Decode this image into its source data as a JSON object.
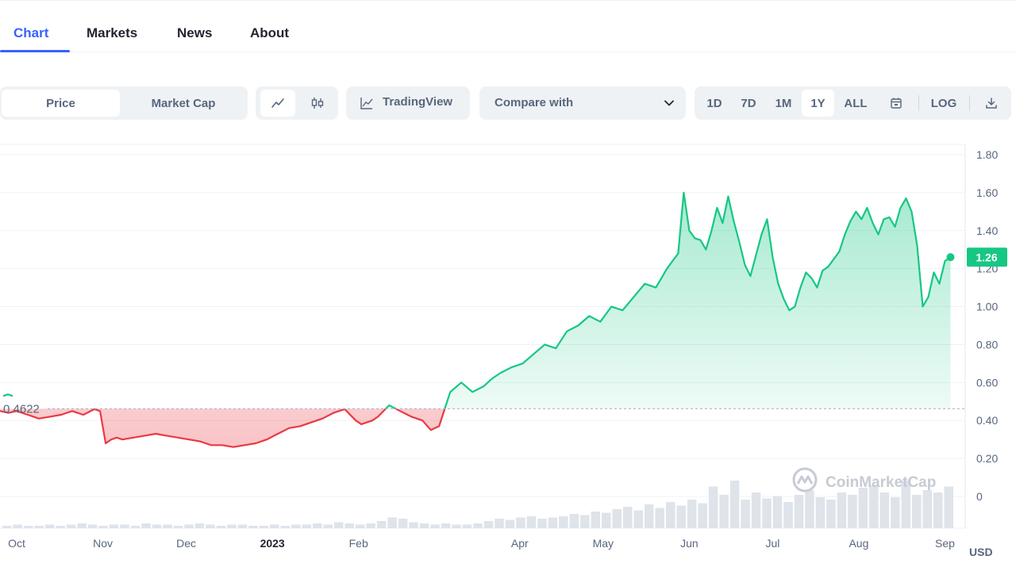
{
  "tabs": [
    {
      "label": "Chart",
      "active": true
    },
    {
      "label": "Markets",
      "active": false
    },
    {
      "label": "News",
      "active": false
    },
    {
      "label": "About",
      "active": false
    }
  ],
  "toolbar": {
    "price_label": "Price",
    "market_cap_label": "Market Cap",
    "line_icon": "line-chart-icon",
    "candle_icon": "candlestick-icon",
    "tradingview_label": "TradingView",
    "compare_label": "Compare with",
    "ranges": [
      "1D",
      "7D",
      "1M",
      "1Y",
      "ALL"
    ],
    "active_range": "1Y",
    "calendar_icon": "calendar-icon",
    "log_label": "LOG",
    "download_icon": "download-icon"
  },
  "colors": {
    "accent": "#3861fb",
    "up": "#16c784",
    "down": "#ea3943",
    "grid": "#eff2f5",
    "axis_text": "#58667e"
  },
  "chart_data": {
    "type": "area",
    "currency_label": "USD",
    "watermark": "CoinMarketCap",
    "baseline_value": 0.4622,
    "baseline_label": "0.4622",
    "current_price": 1.26,
    "current_label": "1.26",
    "ylim": [
      -0.15,
      1.85
    ],
    "y_ticks": [
      "1.80",
      "1.60",
      "1.40",
      "1.20",
      "1.00",
      "0.80",
      "0.60",
      "0.40",
      "0.20",
      "0"
    ],
    "y_tick_values": [
      1.8,
      1.6,
      1.4,
      1.2,
      1.0,
      0.8,
      0.6,
      0.4,
      0.2,
      0.0
    ],
    "x_ticks": [
      {
        "label": "Oct",
        "day": 6,
        "bold": false
      },
      {
        "label": "Nov",
        "day": 37,
        "bold": false
      },
      {
        "label": "Dec",
        "day": 67,
        "bold": false
      },
      {
        "label": "2023",
        "day": 98,
        "bold": true
      },
      {
        "label": "Feb",
        "day": 129,
        "bold": false
      },
      {
        "label": "Apr",
        "day": 187,
        "bold": false
      },
      {
        "label": "May",
        "day": 217,
        "bold": false
      },
      {
        "label": "Jun",
        "day": 248,
        "bold": false
      },
      {
        "label": "Jul",
        "day": 278,
        "bold": false
      },
      {
        "label": "Aug",
        "day": 309,
        "bold": false
      },
      {
        "label": "Sep",
        "day": 340,
        "bold": false
      }
    ],
    "series": [
      {
        "x_days": [
          0,
          3,
          6,
          10,
          14,
          18,
          22,
          26,
          30,
          34,
          36,
          38,
          40,
          42,
          44,
          48,
          52,
          56,
          60,
          64,
          68,
          72,
          76,
          80,
          84,
          88,
          92,
          96,
          100,
          104,
          108,
          112,
          116,
          120,
          124,
          128,
          130,
          132,
          134,
          136,
          140,
          144,
          148,
          152,
          155,
          158,
          162,
          166,
          170,
          174,
          177,
          180,
          184,
          188,
          192,
          196,
          200,
          204,
          208,
          212,
          216,
          220,
          224,
          228,
          232,
          236,
          240,
          244,
          246,
          248,
          250,
          252,
          254,
          256,
          258,
          260,
          262,
          264,
          266,
          268,
          270,
          272,
          274,
          276,
          278,
          280,
          282,
          284,
          286,
          288,
          290,
          292,
          294,
          296,
          298,
          300,
          302,
          304,
          306,
          308,
          310,
          312,
          314,
          316,
          318,
          320,
          322,
          324,
          326,
          328,
          330,
          332,
          334,
          336,
          338,
          340,
          342
        ],
        "values": [
          0.45,
          0.44,
          0.45,
          0.43,
          0.41,
          0.42,
          0.43,
          0.45,
          0.43,
          0.46,
          0.45,
          0.28,
          0.3,
          0.31,
          0.3,
          0.31,
          0.32,
          0.33,
          0.32,
          0.31,
          0.3,
          0.29,
          0.27,
          0.27,
          0.26,
          0.27,
          0.28,
          0.3,
          0.33,
          0.36,
          0.37,
          0.39,
          0.41,
          0.44,
          0.46,
          0.4,
          0.38,
          0.39,
          0.4,
          0.42,
          0.48,
          0.45,
          0.42,
          0.4,
          0.35,
          0.37,
          0.55,
          0.6,
          0.55,
          0.58,
          0.62,
          0.65,
          0.68,
          0.7,
          0.75,
          0.8,
          0.78,
          0.87,
          0.9,
          0.95,
          0.92,
          1.0,
          0.98,
          1.05,
          1.12,
          1.1,
          1.2,
          1.28,
          1.6,
          1.4,
          1.36,
          1.35,
          1.3,
          1.4,
          1.52,
          1.44,
          1.58,
          1.45,
          1.34,
          1.22,
          1.16,
          1.27,
          1.38,
          1.46,
          1.26,
          1.12,
          1.04,
          0.98,
          1.0,
          1.1,
          1.18,
          1.15,
          1.1,
          1.19,
          1.21,
          1.25,
          1.29,
          1.38,
          1.45,
          1.5,
          1.46,
          1.52,
          1.44,
          1.38,
          1.46,
          1.47,
          1.42,
          1.52,
          1.57,
          1.5,
          1.32,
          1.0,
          1.05,
          1.18,
          1.12,
          1.24,
          1.26
        ]
      }
    ],
    "volume_bars": [
      2,
      3,
      2,
      2,
      3,
      2,
      3,
      4,
      3,
      2,
      3,
      3,
      2,
      4,
      3,
      3,
      2,
      3,
      4,
      3,
      2,
      3,
      3,
      2,
      2,
      3,
      2,
      3,
      3,
      4,
      3,
      5,
      4,
      3,
      4,
      6,
      9,
      8,
      5,
      4,
      3,
      4,
      3,
      3,
      4,
      6,
      8,
      7,
      9,
      10,
      8,
      9,
      10,
      12,
      11,
      14,
      13,
      16,
      18,
      15,
      20,
      17,
      22,
      19,
      24,
      21,
      35,
      28,
      40,
      24,
      30,
      25,
      27,
      22,
      28,
      32,
      26,
      24,
      30,
      28,
      34,
      36,
      30,
      26,
      40,
      28,
      32,
      30,
      35
    ]
  }
}
